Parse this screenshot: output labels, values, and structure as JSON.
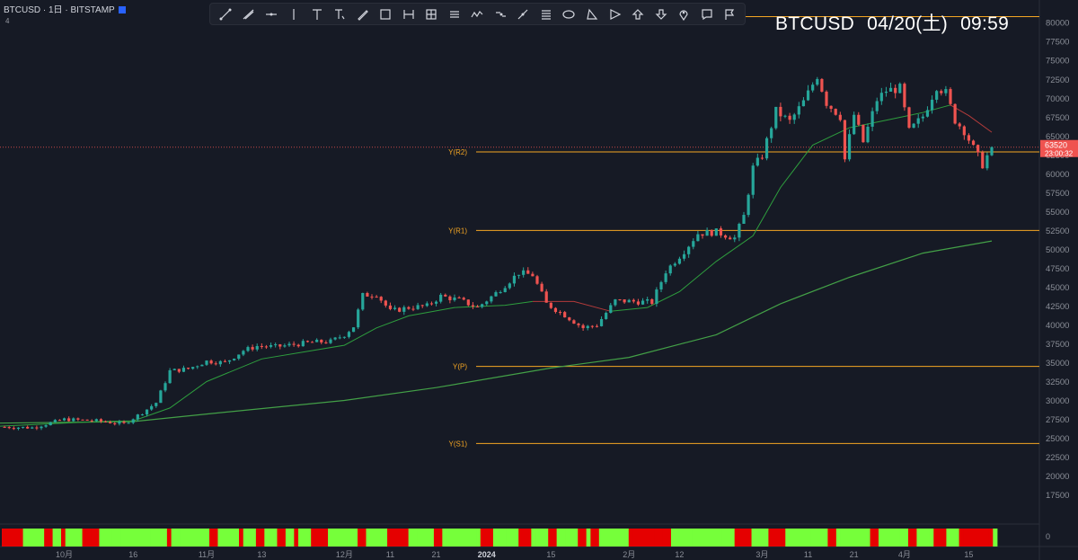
{
  "header": {
    "symbol_info": "BTCUSD · 1日 · BITSTAMP",
    "indicator_count": "4"
  },
  "watermark": {
    "symbol": "BTCUSD",
    "date": "04/20(土)",
    "time": "09:59"
  },
  "toolbar": {
    "tools": [
      "trend-line",
      "ray",
      "horizontal-line",
      "vertical-line",
      "text",
      "text-note",
      "brush",
      "rectangle",
      "range",
      "grid",
      "parallel-channel",
      "path",
      "arrow-line",
      "curve",
      "fib-retracement",
      "ellipse",
      "triangle",
      "pitchfork",
      "arrow-up",
      "arrow-down",
      "pin",
      "comment",
      "flag"
    ]
  },
  "colors": {
    "background": "#161a25",
    "up": "#26a69a",
    "down": "#ef5350",
    "ma_short": "#2e9e3e",
    "ma_long": "#43a047",
    "ma_red": "#b33b3b",
    "pivot": "#f5a623",
    "bar_green": "#76ff3a",
    "bar_red": "#e50000"
  },
  "chart_data": {
    "type": "candlestick",
    "symbol": "BTCUSD",
    "interval": "1日",
    "exchange": "BITSTAMP",
    "y_axis": {
      "range": [
        14000,
        83000
      ],
      "ticks": [
        17500,
        20000,
        22500,
        25000,
        27500,
        30000,
        32500,
        35000,
        37500,
        40000,
        42500,
        45000,
        47500,
        50000,
        52500,
        55000,
        57500,
        60000,
        62500,
        65000,
        67500,
        70000,
        72500,
        75000,
        77500,
        80000
      ]
    },
    "x_axis": {
      "start": "2023-09-17",
      "end": "2024-04-20",
      "ticks": [
        {
          "date": "2023-10-01",
          "label": "10月"
        },
        {
          "date": "2023-10-16",
          "label": "16"
        },
        {
          "date": "2023-11-01",
          "label": "11月"
        },
        {
          "date": "2023-11-13",
          "label": "13"
        },
        {
          "date": "2023-12-01",
          "label": "12月"
        },
        {
          "date": "2023-12-11",
          "label": "11"
        },
        {
          "date": "2023-12-21",
          "label": "21"
        },
        {
          "date": "2024-01-01",
          "label": "2024"
        },
        {
          "date": "2024-01-15",
          "label": "15"
        },
        {
          "date": "2024-02-01",
          "label": "2月"
        },
        {
          "date": "2024-02-12",
          "label": "12"
        },
        {
          "date": "2024-03-01",
          "label": "3月"
        },
        {
          "date": "2024-03-11",
          "label": "11"
        },
        {
          "date": "2024-03-21",
          "label": "21"
        },
        {
          "date": "2024-04-01",
          "label": "4月"
        },
        {
          "date": "2024-04-15",
          "label": "15"
        }
      ]
    },
    "last_price": {
      "value": 63520,
      "label": "63520",
      "countdown": "23:00:32"
    },
    "pivots": [
      {
        "label": "Y(R2)",
        "value": 62900
      },
      {
        "label": "Y(R1)",
        "value": 52500
      },
      {
        "label": "Y(P)",
        "value": 34500
      },
      {
        "label": "Y(S1)",
        "value": 24300
      }
    ],
    "close_path": [
      [
        "2023-09-17",
        26500
      ],
      [
        "2023-09-24",
        26400
      ],
      [
        "2023-10-01",
        27500
      ],
      [
        "2023-10-08",
        27300
      ],
      [
        "2023-10-14",
        26900
      ],
      [
        "2023-10-18",
        28400
      ],
      [
        "2023-10-21",
        29700
      ],
      [
        "2023-10-24",
        33900
      ],
      [
        "2023-10-28",
        34200
      ],
      [
        "2023-11-01",
        35200
      ],
      [
        "2023-11-05",
        35000
      ],
      [
        "2023-11-09",
        36600
      ],
      [
        "2023-11-12",
        37200
      ],
      [
        "2023-11-16",
        37100
      ],
      [
        "2023-11-20",
        37400
      ],
      [
        "2023-11-24",
        37700
      ],
      [
        "2023-11-28",
        37800
      ],
      [
        "2023-12-01",
        38700
      ],
      [
        "2023-12-03",
        39800
      ],
      [
        "2023-12-05",
        43900
      ],
      [
        "2023-12-08",
        44100
      ],
      [
        "2023-12-11",
        41800
      ],
      [
        "2023-12-15",
        42300
      ],
      [
        "2023-12-19",
        42500
      ],
      [
        "2023-12-22",
        43800
      ],
      [
        "2023-12-26",
        43300
      ],
      [
        "2023-12-30",
        42300
      ],
      [
        "2024-01-03",
        44200
      ],
      [
        "2024-01-08",
        46900
      ],
      [
        "2024-01-11",
        46600
      ],
      [
        "2024-01-14",
        42800
      ],
      [
        "2024-01-18",
        41300
      ],
      [
        "2024-01-22",
        39600
      ],
      [
        "2024-01-25",
        40000
      ],
      [
        "2024-01-29",
        43200
      ],
      [
        "2024-02-02",
        43100
      ],
      [
        "2024-02-06",
        43000
      ],
      [
        "2024-02-09",
        47100
      ],
      [
        "2024-02-13",
        49800
      ],
      [
        "2024-02-16",
        52100
      ],
      [
        "2024-02-20",
        52300
      ],
      [
        "2024-02-24",
        51500
      ],
      [
        "2024-02-26",
        54400
      ],
      [
        "2024-02-28",
        60800
      ],
      [
        "2024-03-01",
        62400
      ],
      [
        "2024-03-04",
        68300
      ],
      [
        "2024-03-07",
        66900
      ],
      [
        "2024-03-10",
        69500
      ],
      [
        "2024-03-13",
        73000
      ],
      [
        "2024-03-15",
        69400
      ],
      [
        "2024-03-18",
        67600
      ],
      [
        "2024-03-19",
        61900
      ],
      [
        "2024-03-21",
        67800
      ],
      [
        "2024-03-23",
        64200
      ],
      [
        "2024-03-26",
        69800
      ],
      [
        "2024-03-28",
        71000
      ],
      [
        "2024-03-31",
        71300
      ],
      [
        "2024-04-02",
        65600
      ],
      [
        "2024-04-05",
        67600
      ],
      [
        "2024-04-08",
        71600
      ],
      [
        "2024-04-10",
        70700
      ],
      [
        "2024-04-12",
        67100
      ],
      [
        "2024-04-14",
        65700
      ],
      [
        "2024-04-16",
        63400
      ],
      [
        "2024-04-18",
        61200
      ],
      [
        "2024-04-20",
        63520
      ]
    ],
    "ma_short_path": [
      [
        "2023-09-17",
        26600
      ],
      [
        "2023-10-08",
        27200
      ],
      [
        "2023-10-16",
        27300
      ],
      [
        "2023-10-24",
        29000
      ],
      [
        "2023-11-01",
        32500
      ],
      [
        "2023-11-13",
        35500
      ],
      [
        "2023-12-01",
        37300
      ],
      [
        "2023-12-08",
        39600
      ],
      [
        "2023-12-15",
        41200
      ],
      [
        "2023-12-25",
        42300
      ],
      [
        "2024-01-05",
        42600
      ],
      [
        "2024-01-11",
        43100
      ]
    ],
    "ma_red_path": [
      [
        "2024-01-11",
        43100
      ],
      [
        "2024-01-20",
        43100
      ],
      [
        "2024-01-28",
        41800
      ]
    ],
    "ma_short_path2": [
      [
        "2024-01-28",
        41800
      ],
      [
        "2024-02-05",
        42300
      ],
      [
        "2024-02-12",
        44400
      ],
      [
        "2024-02-20",
        48400
      ],
      [
        "2024-02-28",
        51800
      ],
      [
        "2024-03-05",
        58200
      ],
      [
        "2024-03-12",
        63800
      ],
      [
        "2024-03-20",
        66100
      ],
      [
        "2024-03-28",
        67100
      ],
      [
        "2024-04-05",
        68100
      ],
      [
        "2024-04-11",
        69100
      ]
    ],
    "ma_red_path2": [
      [
        "2024-04-11",
        69100
      ],
      [
        "2024-04-15",
        67700
      ],
      [
        "2024-04-20",
        65500
      ]
    ],
    "ma_long_path": [
      [
        "2023-09-17",
        27000
      ],
      [
        "2023-10-16",
        27200
      ],
      [
        "2023-11-01",
        28200
      ],
      [
        "2023-12-01",
        30000
      ],
      [
        "2023-12-21",
        31700
      ],
      [
        "2024-01-15",
        34300
      ],
      [
        "2024-02-01",
        35700
      ],
      [
        "2024-02-20",
        38700
      ],
      [
        "2024-03-05",
        42800
      ],
      [
        "2024-03-20",
        46300
      ],
      [
        "2024-04-05",
        49500
      ],
      [
        "2024-04-20",
        51100
      ]
    ],
    "indicator_pattern": "RRRRRGGGGGRRGGRGGGGRRRRGGGGGGGGGGGGGGGGRGGGGGGGGGRRGGGGGRGGGRRGGGRRGGRGGGRRRRGGGGGGGRRGGGGGRRRRRGGGGGGRRGGGGGGGGGRRRGGGGGGRRRGGGGRRGGGGGRRGRRGGGGGGGRRRRRRRRRRGGGGGGGGGGGGGGGRRRRGGGGRRRRGGGGGGGGGGRRGGGGGGGGRRGGGGGGGRRGGGGRRRGGGRRRRRRRRG"
  }
}
